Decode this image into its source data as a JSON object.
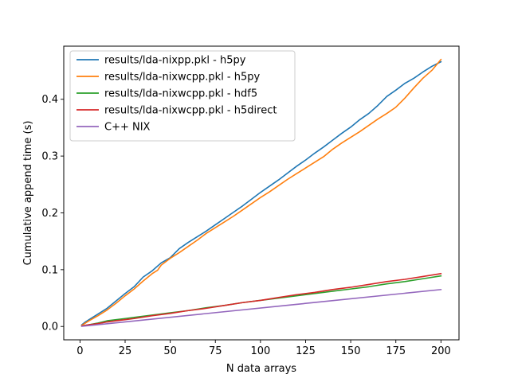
{
  "chart_data": {
    "type": "line",
    "title": "",
    "xlabel": "N data arrays",
    "ylabel": "Cumulative append time (s)",
    "xlim": [
      -9,
      210
    ],
    "ylim": [
      -0.0235,
      0.4935
    ],
    "xticks": [
      0,
      25,
      50,
      75,
      100,
      125,
      150,
      175,
      200
    ],
    "yticks": [
      0.0,
      0.1,
      0.2,
      0.3,
      0.4
    ],
    "ytick_labels": [
      "0.0",
      "0.1",
      "0.2",
      "0.3",
      "0.4"
    ],
    "grid": false,
    "legend_position": "upper-left",
    "series": [
      {
        "name": "results/lda-nixpp.pkl - h5py",
        "color": "#1f77b4",
        "x": [
          1,
          3,
          5,
          10,
          15,
          20,
          25,
          30,
          35,
          40,
          45,
          50,
          55,
          60,
          65,
          70,
          75,
          80,
          85,
          90,
          95,
          100,
          105,
          110,
          115,
          120,
          125,
          130,
          135,
          140,
          145,
          150,
          155,
          160,
          165,
          170,
          175,
          180,
          185,
          190,
          195,
          200
        ],
        "y": [
          0.003,
          0.008,
          0.012,
          0.022,
          0.032,
          0.045,
          0.058,
          0.07,
          0.087,
          0.098,
          0.112,
          0.121,
          0.137,
          0.148,
          0.158,
          0.168,
          0.179,
          0.19,
          0.201,
          0.212,
          0.224,
          0.236,
          0.247,
          0.258,
          0.27,
          0.282,
          0.293,
          0.305,
          0.316,
          0.328,
          0.34,
          0.351,
          0.364,
          0.375,
          0.389,
          0.405,
          0.416,
          0.428,
          0.437,
          0.448,
          0.458,
          0.466
        ]
      },
      {
        "name": "results/lda-nixwcpp.pkl - h5py",
        "color": "#ff7f0e",
        "x": [
          1,
          3,
          5,
          10,
          15,
          20,
          25,
          30,
          35,
          40,
          43,
          45,
          50,
          55,
          60,
          65,
          70,
          75,
          80,
          85,
          90,
          95,
          100,
          105,
          110,
          115,
          120,
          125,
          130,
          135,
          140,
          145,
          150,
          155,
          160,
          165,
          170,
          175,
          180,
          185,
          190,
          195,
          200
        ],
        "y": [
          0.002,
          0.006,
          0.01,
          0.019,
          0.029,
          0.041,
          0.054,
          0.066,
          0.08,
          0.093,
          0.099,
          0.108,
          0.12,
          0.13,
          0.141,
          0.152,
          0.164,
          0.174,
          0.184,
          0.194,
          0.205,
          0.216,
          0.227,
          0.237,
          0.248,
          0.259,
          0.269,
          0.279,
          0.289,
          0.299,
          0.312,
          0.323,
          0.333,
          0.343,
          0.354,
          0.365,
          0.375,
          0.386,
          0.402,
          0.42,
          0.437,
          0.451,
          0.47
        ]
      },
      {
        "name": "results/lda-nixwcpp.pkl - hdf5",
        "color": "#2ca02c",
        "x": [
          1,
          5,
          10,
          15,
          20,
          25,
          30,
          40,
          50,
          60,
          70,
          80,
          90,
          100,
          110,
          120,
          130,
          140,
          150,
          160,
          170,
          180,
          190,
          200
        ],
        "y": [
          0.001,
          0.003,
          0.006,
          0.01,
          0.012,
          0.014,
          0.016,
          0.02,
          0.024,
          0.028,
          0.033,
          0.037,
          0.042,
          0.046,
          0.05,
          0.054,
          0.058,
          0.062,
          0.066,
          0.07,
          0.075,
          0.079,
          0.084,
          0.089
        ]
      },
      {
        "name": "results/lda-nixwcpp.pkl - h5direct",
        "color": "#d62728",
        "x": [
          1,
          5,
          10,
          15,
          20,
          25,
          30,
          40,
          50,
          60,
          70,
          80,
          90,
          100,
          110,
          120,
          130,
          140,
          150,
          160,
          170,
          180,
          190,
          200
        ],
        "y": [
          0.001,
          0.003,
          0.005,
          0.008,
          0.01,
          0.012,
          0.014,
          0.019,
          0.023,
          0.028,
          0.032,
          0.037,
          0.042,
          0.046,
          0.051,
          0.056,
          0.06,
          0.065,
          0.069,
          0.074,
          0.079,
          0.083,
          0.088,
          0.093
        ]
      },
      {
        "name": "C++ NIX",
        "color": "#9467bd",
        "x": [
          1,
          200
        ],
        "y": [
          0.0003,
          0.065
        ]
      }
    ]
  }
}
